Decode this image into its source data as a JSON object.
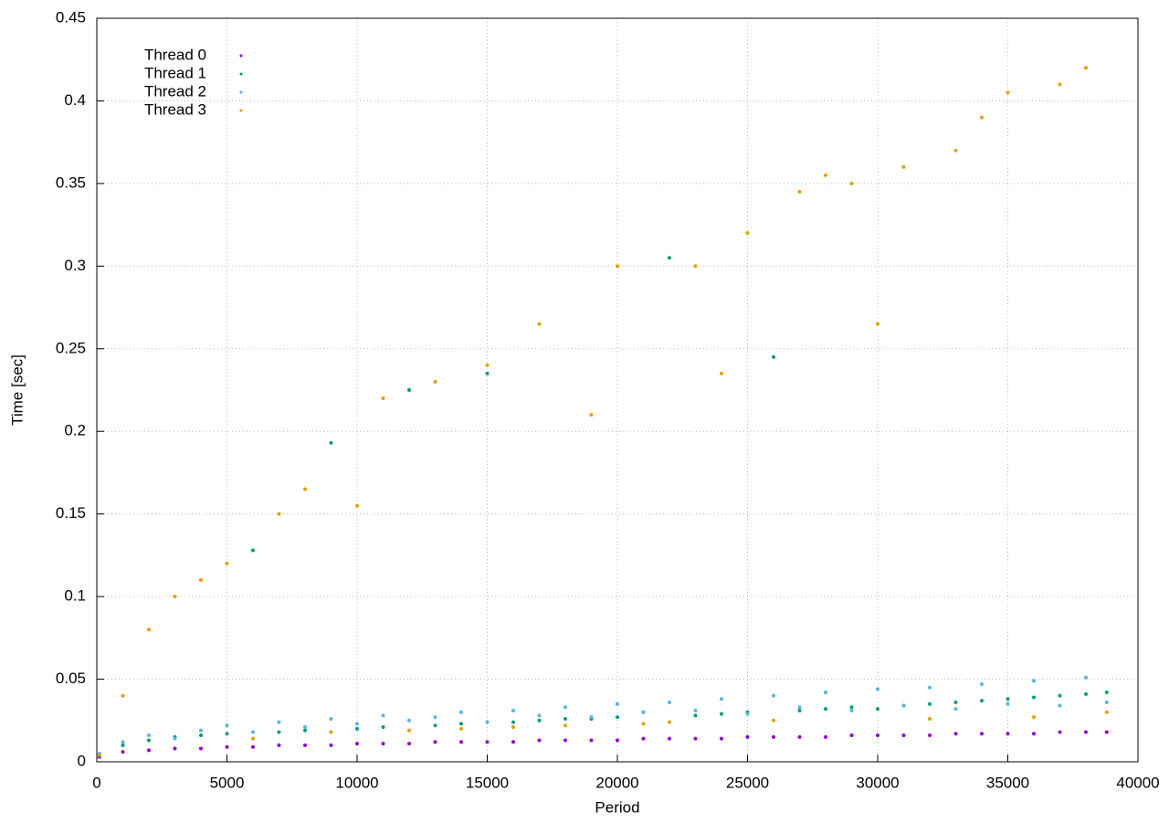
{
  "chart_data": {
    "type": "scatter",
    "x_label": "Period",
    "y_label": "Time [sec]",
    "x": [
      100,
      1000,
      2000,
      3000,
      4000,
      5000,
      6000,
      7000,
      8000,
      9000,
      10000,
      11000,
      12000,
      13000,
      14000,
      15000,
      16000,
      17000,
      18000,
      19000,
      20000,
      21000,
      22000,
      23000,
      24000,
      25000,
      26000,
      27000,
      28000,
      29000,
      30000,
      31000,
      32000,
      33000,
      34000,
      35000,
      36000,
      37000,
      38000,
      38800
    ],
    "series": [
      {
        "name": "Thread 0",
        "color": "#9400d3",
        "values": [
          0.003,
          0.006,
          0.007,
          0.008,
          0.008,
          0.009,
          0.009,
          0.01,
          0.01,
          0.01,
          0.011,
          0.011,
          0.011,
          0.012,
          0.012,
          0.012,
          0.012,
          0.013,
          0.013,
          0.013,
          0.013,
          0.014,
          0.014,
          0.014,
          0.014,
          0.015,
          0.015,
          0.015,
          0.015,
          0.016,
          0.016,
          0.016,
          0.016,
          0.017,
          0.017,
          0.017,
          0.017,
          0.018,
          0.018,
          0.018
        ]
      },
      {
        "name": "Thread 1",
        "color": "#009e73",
        "values": [
          0.004,
          0.01,
          0.013,
          0.015,
          0.016,
          0.017,
          0.128,
          0.018,
          0.019,
          0.193,
          0.02,
          0.021,
          0.225,
          0.022,
          0.023,
          0.235,
          0.024,
          0.025,
          0.026,
          0.026,
          0.027,
          0.03,
          0.305,
          0.028,
          0.029,
          0.03,
          0.245,
          0.031,
          0.032,
          0.033,
          0.032,
          0.034,
          0.035,
          0.036,
          0.037,
          0.038,
          0.039,
          0.04,
          0.041,
          0.042
        ]
      },
      {
        "name": "Thread 2",
        "color": "#56b4e9",
        "values": [
          0.005,
          0.012,
          0.016,
          0.014,
          0.019,
          0.022,
          0.018,
          0.024,
          0.021,
          0.026,
          0.023,
          0.028,
          0.025,
          0.027,
          0.03,
          0.024,
          0.031,
          0.028,
          0.033,
          0.027,
          0.035,
          0.03,
          0.036,
          0.031,
          0.038,
          0.029,
          0.04,
          0.033,
          0.042,
          0.031,
          0.044,
          0.034,
          0.045,
          0.032,
          0.047,
          0.035,
          0.049,
          0.034,
          0.051,
          0.036
        ]
      },
      {
        "name": "Thread 3",
        "color": "#e69f00",
        "values": [
          0.004,
          0.04,
          0.08,
          0.1,
          0.11,
          0.12,
          0.014,
          0.15,
          0.165,
          0.018,
          0.155,
          0.22,
          0.019,
          0.23,
          0.02,
          0.24,
          0.021,
          0.265,
          0.022,
          0.21,
          0.3,
          0.023,
          0.024,
          0.3,
          0.235,
          0.32,
          0.025,
          0.345,
          0.355,
          0.35,
          0.265,
          0.36,
          0.026,
          0.37,
          0.39,
          0.405,
          0.027,
          0.41,
          0.42,
          0.03
        ]
      }
    ],
    "xlim": [
      0,
      40000
    ],
    "xticks": [
      0,
      5000,
      10000,
      15000,
      20000,
      25000,
      30000,
      35000,
      40000
    ],
    "ylim": [
      0,
      0.45
    ],
    "yticks": [
      0,
      0.05,
      0.1,
      0.15,
      0.2,
      0.25,
      0.3,
      0.35,
      0.4,
      0.45
    ],
    "grid": true,
    "legend": "top-left"
  }
}
